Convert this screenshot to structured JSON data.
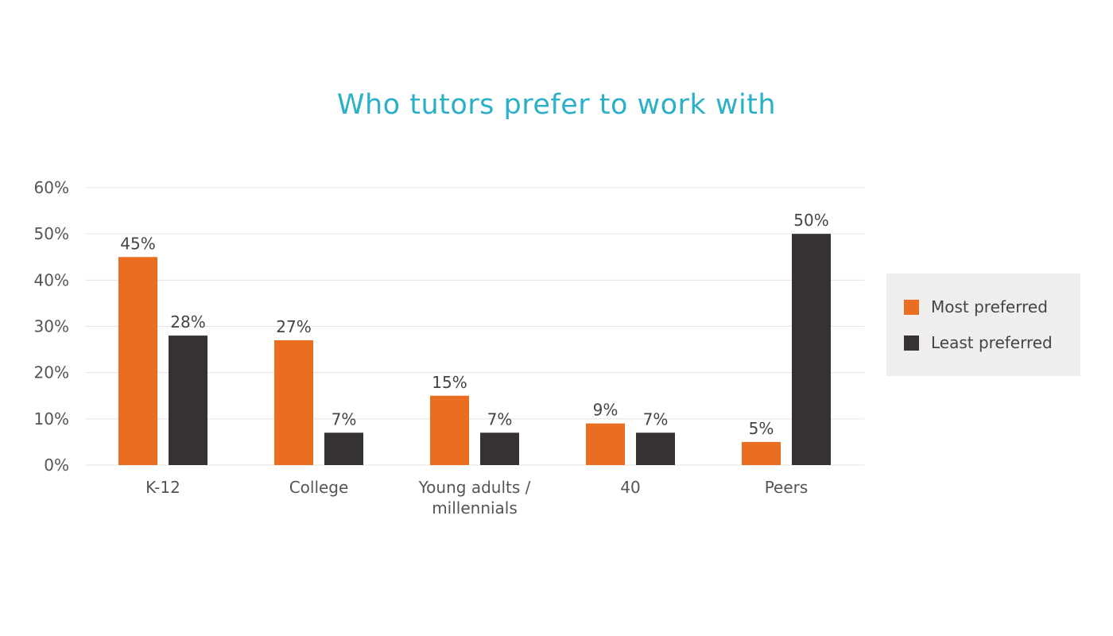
{
  "chart_data": {
    "type": "bar",
    "title": "Who tutors prefer to work with",
    "xlabel": "",
    "ylabel": "",
    "categories": [
      [
        "K-12"
      ],
      [
        "College"
      ],
      [
        "Young adults /",
        "millennials"
      ],
      [
        "40"
      ],
      [
        "Peers"
      ]
    ],
    "series": [
      {
        "name": "Most preferred",
        "color": "#ea6e22",
        "values": [
          45,
          27,
          15,
          9,
          5
        ],
        "labels": [
          "45%",
          "27%",
          "15%",
          "9%",
          "5%"
        ]
      },
      {
        "name": "Least preferred",
        "color": "#363232",
        "values": [
          28,
          7,
          7,
          7,
          50
        ],
        "labels": [
          "28%",
          "7%",
          "7%",
          "7%",
          "50%"
        ]
      }
    ],
    "ylim": [
      0,
      60
    ],
    "yticks": [
      0,
      10,
      20,
      30,
      40,
      50,
      60
    ],
    "ytick_labels": [
      "0%",
      "10%",
      "20%",
      "30%",
      "40%",
      "50%",
      "60%"
    ],
    "grid": true,
    "legend_position": "right"
  }
}
